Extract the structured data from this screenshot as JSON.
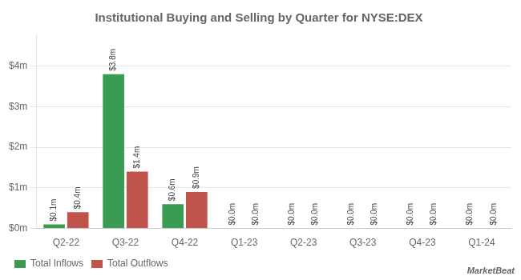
{
  "chart_data": {
    "type": "bar",
    "title": "Institutional Buying and Selling by Quarter for NYSE:DEX",
    "categories": [
      "Q2-22",
      "Q3-22",
      "Q4-22",
      "Q1-23",
      "Q2-23",
      "Q3-23",
      "Q4-23",
      "Q1-24"
    ],
    "series": [
      {
        "name": "Total Inflows",
        "color": "#3a9c52",
        "values": [
          0.1,
          3.8,
          0.6,
          0.0,
          0.0,
          0.0,
          0.0,
          0.0
        ],
        "value_labels": [
          "$0.1m",
          "$3.8m",
          "$0.6m",
          "$0.0m",
          "$0.0m",
          "$0.0m",
          "$0.0m",
          "$0.0m"
        ]
      },
      {
        "name": "Total Outflows",
        "color": "#c0544a",
        "values": [
          0.4,
          1.4,
          0.9,
          0.0,
          0.0,
          0.0,
          0.0,
          0.0
        ],
        "value_labels": [
          "$0.4m",
          "$1.4m",
          "$0.9m",
          "$0.0m",
          "$0.0m",
          "$0.0m",
          "$0.0m",
          "$0.0m"
        ]
      }
    ],
    "ylim": [
      0,
      4.8
    ],
    "yticks": [
      {
        "value": 0,
        "label": "$0m"
      },
      {
        "value": 1,
        "label": "$1m"
      },
      {
        "value": 2,
        "label": "$2m"
      },
      {
        "value": 3,
        "label": "$3m"
      },
      {
        "value": 4,
        "label": "$4m"
      }
    ],
    "grid": true,
    "legend": "lower left",
    "data_labels": true,
    "annotations": [
      "MarketBeat"
    ]
  }
}
